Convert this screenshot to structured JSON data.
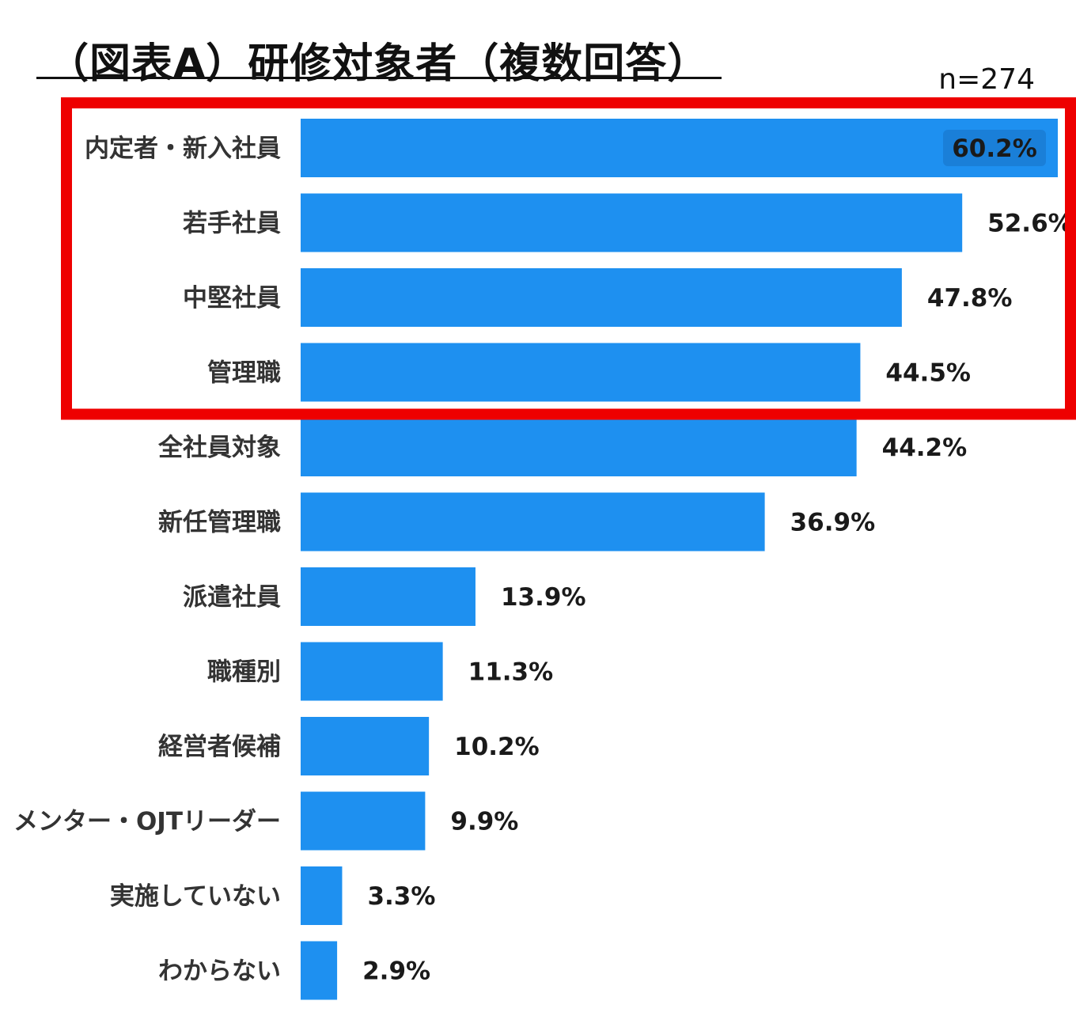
{
  "header": {
    "title": "（図表A）研修対象者（複数回答）",
    "sample_size": "n=274"
  },
  "colors": {
    "bar": "#1E90F0",
    "highlight_box": "#EE0000",
    "top_label_bg": "#1A7FD8"
  },
  "chart_data": {
    "type": "bar",
    "orientation": "horizontal",
    "categories": [
      "内定者・新入社員",
      "若手社員",
      "中堅社員",
      "管理職",
      "全社員対象",
      "新任管理職",
      "派遣社員",
      "職種別",
      "経営者候補",
      "メンター・OJTリーダー",
      "実施していない",
      "わからない"
    ],
    "values": [
      60.2,
      52.6,
      47.8,
      44.5,
      44.2,
      36.9,
      13.9,
      11.3,
      10.2,
      9.9,
      3.3,
      2.9
    ],
    "value_labels": [
      "60.2%",
      "52.6%",
      "47.8%",
      "44.5%",
      "44.2%",
      "36.9%",
      "13.9%",
      "11.3%",
      "10.2%",
      "9.9%",
      "3.3%",
      "2.9%"
    ],
    "unit": "%",
    "xlim": [
      0,
      60.2
    ],
    "grid": false,
    "highlighted_categories": [
      0,
      1,
      2,
      3
    ]
  }
}
